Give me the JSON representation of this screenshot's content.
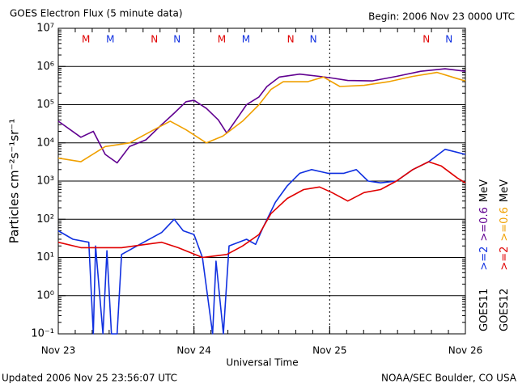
{
  "chart_data": {
    "type": "line",
    "title": "GOES Electron Flux (5 minute data)",
    "subtitle": "Begin: 2006 Nov 23 0000 UTC",
    "xlabel": "Universal Time",
    "ylabel": "Particles cm⁻²s⁻¹sr⁻¹",
    "footer_left": "Updated 2006 Nov 25 23:56:07 UTC",
    "footer_right": "NOAA/SEC Boulder, CO USA",
    "log_y": true,
    "grid": true,
    "threshold": 1000,
    "xlim": [
      0,
      72
    ],
    "xticks": [
      {
        "value": 0,
        "label": "Nov 23"
      },
      {
        "value": 24,
        "label": "Nov 24"
      },
      {
        "value": 48,
        "label": "Nov 25"
      },
      {
        "value": 72,
        "label": "Nov 26"
      }
    ],
    "ylim": [
      0.1,
      10000000
    ],
    "yticks": [
      {
        "value": 10000000,
        "label": "10⁷"
      },
      {
        "value": 1000000,
        "label": "10⁶"
      },
      {
        "value": 100000,
        "label": "10⁵"
      },
      {
        "value": 10000,
        "label": "10⁴"
      },
      {
        "value": 1000,
        "label": "10³"
      },
      {
        "value": 100,
        "label": "10²"
      },
      {
        "value": 10,
        "label": "10¹"
      },
      {
        "value": 1,
        "label": "10⁰"
      },
      {
        "value": 0.1,
        "label": "10⁻¹"
      }
    ],
    "markers": [
      {
        "label": "M",
        "x": 4.9,
        "color": "#e00000"
      },
      {
        "label": "M",
        "x": 9.2,
        "color": "#1030e0"
      },
      {
        "label": "N",
        "x": 17.0,
        "color": "#e00000"
      },
      {
        "label": "N",
        "x": 21.0,
        "color": "#1030e0"
      },
      {
        "label": "M",
        "x": 28.9,
        "color": "#e00000"
      },
      {
        "label": "M",
        "x": 33.2,
        "color": "#1030e0"
      },
      {
        "label": "N",
        "x": 41.1,
        "color": "#e00000"
      },
      {
        "label": "N",
        "x": 45.1,
        "color": "#1030e0"
      },
      {
        "label": "N",
        "x": 65.1,
        "color": "#e00000"
      },
      {
        "label": "N",
        "x": 69.1,
        "color": "#1030e0"
      }
    ],
    "groups": [
      {
        "name": "GOES11",
        "unit": "MeV",
        "series": [
          {
            "name": ">=2",
            "color": "#1030e0",
            "x": [
              0,
              2.6,
              5.4,
              6.2,
              6.6,
              7.9,
              8.6,
              9.4,
              10.4,
              11.2,
              13.9,
              18.3,
              20.5,
              22.1,
              24,
              25.5,
              27.3,
              27.9,
              29.2,
              30.2,
              33.3,
              34.9,
              36.2,
              38.4,
              40.5,
              42.7,
              44.8,
              47.7,
              50.5,
              52.7,
              54.8,
              57,
              59.8,
              62.7,
              65.5,
              68.4,
              72
            ],
            "values": [
              50,
              30,
              25,
              0.1,
              20,
              0.1,
              15,
              0.1,
              0.1,
              12,
              20,
              45,
              100,
              50,
              40,
              10,
              0.1,
              8,
              0.1,
              20,
              30,
              22,
              60,
              280,
              750,
              1600,
              2000,
              1600,
              1600,
              2000,
              1000,
              900,
              1000,
              2000,
              3200,
              6800,
              5000
            ]
          },
          {
            "name": ">=0.6",
            "color": "#600090",
            "x": [
              0,
              4,
              6.2,
              8.3,
              10.4,
              12.6,
              15.5,
              18.3,
              20.5,
              22.6,
              24,
              26.2,
              28.3,
              29.8,
              31.9,
              33.3,
              35.5,
              36.9,
              39.1,
              42.7,
              46.2,
              48.4,
              51.2,
              55.5,
              59.8,
              64.1,
              68.4,
              72
            ],
            "values": [
              37000,
              14000,
              20000,
              5000,
              3000,
              8000,
              12000,
              30000,
              60000,
              120000,
              130000,
              80000,
              40000,
              18000,
              50000,
              100000,
              160000,
              300000,
              530000,
              630000,
              550000,
              500000,
              430000,
              420000,
              550000,
              750000,
              870000,
              750000
            ]
          }
        ]
      },
      {
        "name": "GOES12",
        "unit": "MeV",
        "series": [
          {
            "name": ">=2",
            "color": "#e00000",
            "x": [
              0,
              4,
              11.2,
              15.5,
              18.3,
              21.2,
              25.5,
              29.8,
              32.6,
              35.5,
              37.6,
              40.5,
              43.4,
              46.2,
              48.4,
              51.2,
              54.1,
              57,
              59.8,
              62.7,
              65.5,
              67.7,
              70.6,
              72
            ],
            "values": [
              25,
              18,
              18,
              22,
              25,
              18,
              10,
              12,
              20,
              40,
              140,
              350,
              600,
              700,
              500,
              300,
              500,
              600,
              1000,
              2000,
              3200,
              2500,
              1200,
              900
            ]
          },
          {
            "name": ">=0.6",
            "color": "#f0a000",
            "x": [
              0,
              4,
              8.3,
              12.6,
              16.9,
              19.8,
              22.6,
              26.2,
              29.1,
              32.6,
              35.5,
              37.6,
              39.8,
              44.1,
              46.9,
              49.8,
              54.1,
              58.4,
              62.7,
              67,
              70.6,
              72
            ],
            "values": [
              4000,
              3200,
              8000,
              10000,
              22000,
              37000,
              22000,
              10000,
              15000,
              37000,
              100000,
              250000,
              400000,
              400000,
              530000,
              300000,
              320000,
              400000,
              550000,
              700000,
              480000,
              420000
            ]
          }
        ]
      }
    ]
  }
}
